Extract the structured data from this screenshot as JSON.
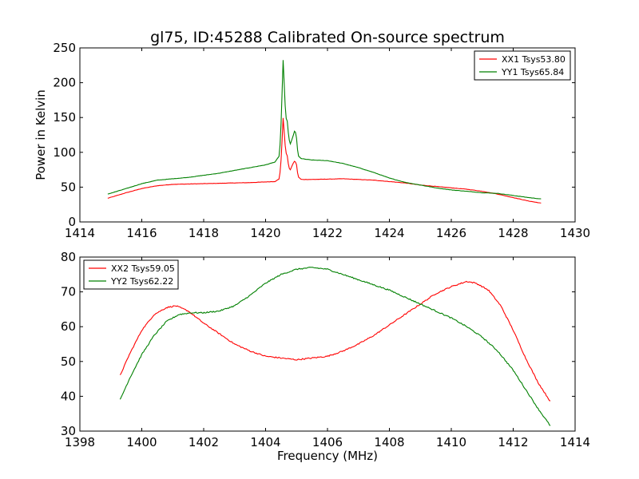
{
  "figure": {
    "title": "gl75, ID:45288 Calibrated On-source spectrum"
  },
  "chart_data": [
    {
      "type": "line",
      "title": "gl75, ID:45288 Calibrated On-source spectrum",
      "xlabel": "",
      "ylabel": "Power in Kelvin",
      "xlim": [
        1414,
        1430
      ],
      "ylim": [
        0,
        250
      ],
      "xticks": [
        1414,
        1416,
        1418,
        1420,
        1422,
        1424,
        1426,
        1428,
        1430
      ],
      "yticks": [
        0,
        50,
        100,
        150,
        200,
        250
      ],
      "grid": false,
      "legend_position": "top-right",
      "series": [
        {
          "name": "XX1 Tsys53.80",
          "color": "#ff0000",
          "x": [
            1414.9,
            1415.5,
            1416.0,
            1416.5,
            1417.0,
            1417.5,
            1418.0,
            1418.5,
            1419.0,
            1419.5,
            1420.0,
            1420.3,
            1420.45,
            1420.52,
            1420.56,
            1420.6,
            1420.65,
            1420.7,
            1420.75,
            1420.8,
            1420.85,
            1420.9,
            1420.95,
            1421.0,
            1421.05,
            1421.15,
            1421.3,
            1421.5,
            1422.0,
            1422.5,
            1423.0,
            1423.5,
            1424.0,
            1424.5,
            1425.0,
            1425.5,
            1426.0,
            1426.5,
            1427.0,
            1427.5,
            1428.0,
            1428.5,
            1428.9
          ],
          "y": [
            34,
            42,
            48,
            52,
            54,
            54.5,
            55,
            55.5,
            56,
            56.5,
            57.5,
            58,
            62,
            100,
            153,
            130,
            100,
            95,
            78,
            75,
            80,
            85,
            88,
            82,
            65,
            61,
            61,
            61,
            61.5,
            62,
            61,
            60,
            58,
            56,
            53,
            51,
            49,
            47,
            44,
            40,
            35,
            30,
            27
          ]
        },
        {
          "name": "YY1 Tsys65.84",
          "color": "#008000",
          "x": [
            1414.9,
            1415.5,
            1416.0,
            1416.5,
            1417.0,
            1417.5,
            1418.0,
            1418.5,
            1419.0,
            1419.5,
            1420.0,
            1420.3,
            1420.45,
            1420.52,
            1420.56,
            1420.6,
            1420.65,
            1420.7,
            1420.75,
            1420.8,
            1420.85,
            1420.9,
            1420.95,
            1421.0,
            1421.05,
            1421.15,
            1421.3,
            1421.5,
            1422.0,
            1422.5,
            1423.0,
            1423.5,
            1424.0,
            1424.5,
            1425.0,
            1425.5,
            1426.0,
            1426.5,
            1427.0,
            1427.5,
            1428.0,
            1428.5,
            1428.9
          ],
          "y": [
            40,
            48,
            55,
            60,
            62,
            64,
            67,
            70,
            74,
            78,
            82,
            86,
            95,
            160,
            239,
            200,
            150,
            145,
            120,
            112,
            118,
            125,
            133,
            120,
            95,
            91,
            90,
            89,
            88,
            84,
            78,
            71,
            63,
            57,
            53,
            49,
            46,
            44,
            42,
            41,
            38,
            35,
            33
          ]
        }
      ]
    },
    {
      "type": "line",
      "title": "",
      "xlabel": "Frequency (MHz)",
      "ylabel": "",
      "xlim": [
        1398,
        1414
      ],
      "ylim": [
        30,
        80
      ],
      "xticks": [
        1398,
        1400,
        1402,
        1404,
        1406,
        1408,
        1410,
        1412,
        1414
      ],
      "yticks": [
        30,
        40,
        50,
        60,
        70,
        80
      ],
      "grid": false,
      "legend_position": "top-left",
      "series": [
        {
          "name": "XX2 Tsys59.05",
          "color": "#ff0000",
          "x": [
            1399.3,
            1399.6,
            1400.0,
            1400.4,
            1400.8,
            1401.1,
            1401.5,
            1402.0,
            1402.5,
            1403.0,
            1403.5,
            1404.0,
            1404.5,
            1405.0,
            1405.5,
            1406.0,
            1406.5,
            1407.0,
            1407.5,
            1408.0,
            1408.5,
            1409.0,
            1409.5,
            1410.0,
            1410.5,
            1410.8,
            1411.2,
            1411.6,
            1412.0,
            1412.4,
            1412.8,
            1413.2
          ],
          "y": [
            46,
            52,
            59,
            63.5,
            65.5,
            66,
            64.5,
            61,
            58,
            55,
            53,
            51.5,
            51,
            50.5,
            51,
            51.5,
            53,
            55,
            57.5,
            60.5,
            63.5,
            66.5,
            69.5,
            71.5,
            73,
            72.5,
            70.5,
            66,
            59,
            51,
            44,
            38.5
          ]
        },
        {
          "name": "YY2 Tsys62.22",
          "color": "#008000",
          "x": [
            1399.3,
            1399.6,
            1400.0,
            1400.4,
            1400.8,
            1401.2,
            1401.6,
            1402.0,
            1402.5,
            1403.0,
            1403.5,
            1404.0,
            1404.5,
            1405.0,
            1405.5,
            1406.0,
            1406.5,
            1407.0,
            1407.5,
            1408.0,
            1408.5,
            1409.0,
            1409.5,
            1410.0,
            1410.5,
            1411.0,
            1411.5,
            1412.0,
            1412.4,
            1412.8,
            1413.2
          ],
          "y": [
            39,
            45,
            52,
            57.5,
            61.5,
            63.5,
            64,
            64,
            64.5,
            66,
            69,
            72.5,
            75,
            76.5,
            77,
            76.5,
            75,
            73.5,
            72,
            70.5,
            68.5,
            66.5,
            64.5,
            62.5,
            60,
            57,
            53,
            47.5,
            42,
            36.5,
            31.5
          ]
        }
      ]
    }
  ]
}
